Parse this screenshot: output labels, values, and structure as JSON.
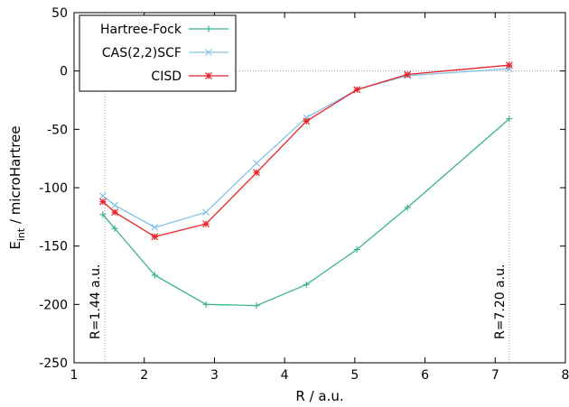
{
  "chart_data": {
    "type": "line",
    "xlabel": "R / a.u.",
    "ylabel": {
      "main": "E",
      "sub": "int",
      "rest": " / microHartree"
    },
    "xlim": [
      1,
      8
    ],
    "ylim": [
      -250,
      50
    ],
    "xticks": [
      1,
      2,
      3,
      4,
      5,
      6,
      7,
      8
    ],
    "yticks": [
      -250,
      -200,
      -150,
      -100,
      -50,
      0,
      50
    ],
    "grid": false,
    "legend_position": "top-left",
    "series": [
      {
        "name": "Hartree-Fock",
        "color": "#3cb38a",
        "marker": "plus",
        "x": [
          1.41,
          1.58,
          2.15,
          2.88,
          3.6,
          4.31,
          5.03,
          5.75,
          7.2
        ],
        "y": [
          -123,
          -135,
          -175,
          -200,
          -201,
          -183,
          -153,
          -117,
          -41
        ]
      },
      {
        "name": "CAS(2,2)SCF",
        "color": "#87c2e6",
        "marker": "x",
        "x": [
          1.41,
          1.58,
          2.15,
          2.88,
          3.6,
          4.31,
          5.03,
          5.75,
          7.2
        ],
        "y": [
          -107,
          -115,
          -134,
          -121,
          -79,
          -40,
          -16,
          -4,
          2
        ]
      },
      {
        "name": "CISD",
        "color": "#e8232a",
        "marker": "star",
        "x": [
          1.41,
          1.58,
          2.15,
          2.88,
          3.6,
          4.31,
          5.03,
          5.75,
          7.2
        ],
        "y": [
          -112,
          -121,
          -142,
          -131,
          -87,
          -43,
          -16,
          -3,
          5
        ]
      }
    ],
    "reference_lines": [
      {
        "axis": "y",
        "value": 0
      },
      {
        "axis": "x",
        "value": 1.44,
        "label": "R=1.44 a.u."
      },
      {
        "axis": "x",
        "value": 7.2,
        "label": "R=7.20 a.u."
      }
    ]
  }
}
